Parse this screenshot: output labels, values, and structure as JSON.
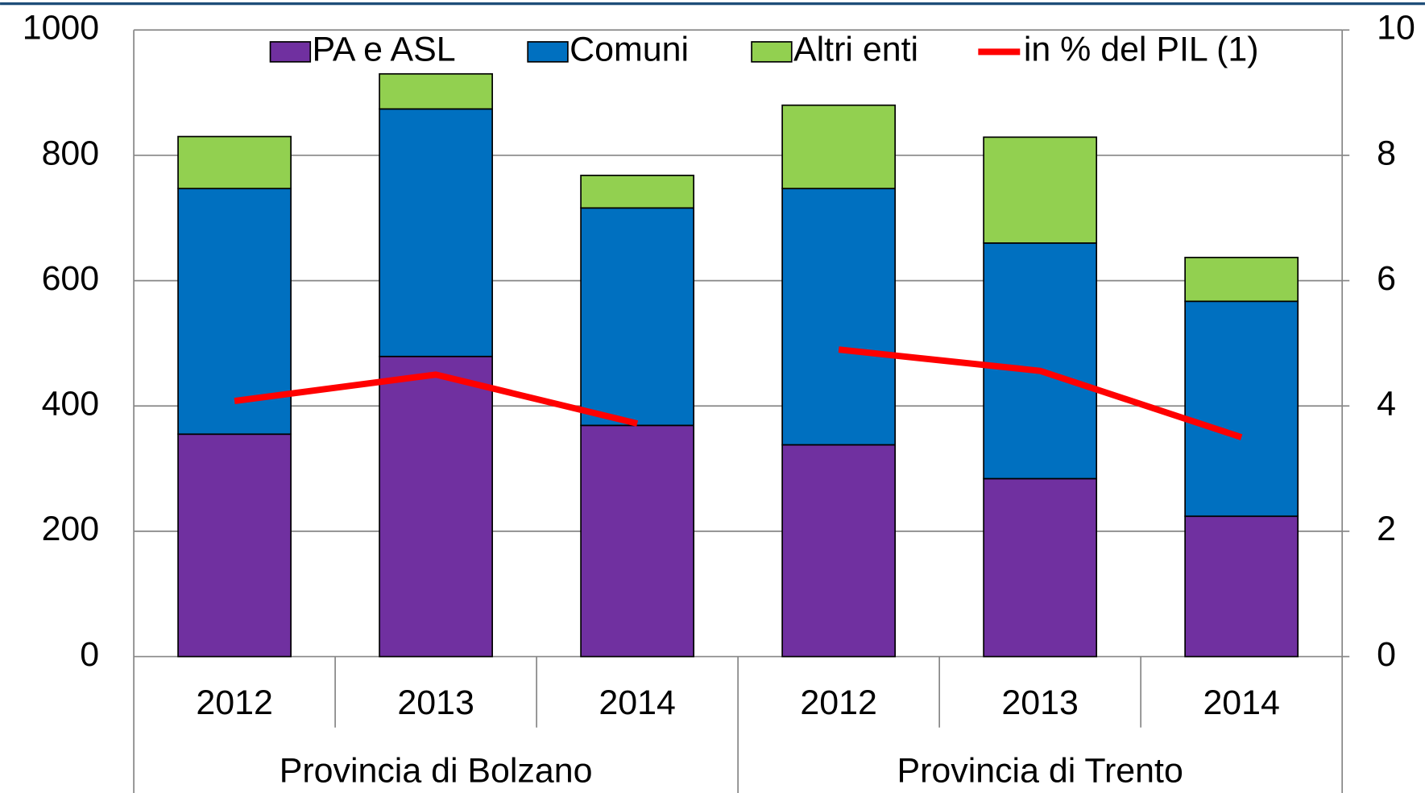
{
  "chart_data": {
    "type": "bar",
    "stacked": true,
    "categories": [
      "2012",
      "2013",
      "2014",
      "2012",
      "2013",
      "2014"
    ],
    "category_groups": [
      "Provincia di Bolzano",
      "Provincia di Trento"
    ],
    "series": [
      {
        "name": "PA e ASL",
        "color": "#7030a0",
        "values": [
          355,
          479,
          369,
          338,
          284,
          224
        ]
      },
      {
        "name": "Comuni",
        "color": "#0070c0",
        "values": [
          392,
          395,
          347,
          409,
          376,
          343
        ]
      },
      {
        "name": "Altri enti",
        "color": "#92d050",
        "values": [
          83,
          56,
          52,
          133,
          169,
          70
        ]
      },
      {
        "name": "in % del PIL (1)",
        "color": "#ff0000",
        "type": "line",
        "axis": "y2",
        "values": [
          4.08,
          4.5,
          3.72,
          4.9,
          4.56,
          3.5
        ]
      }
    ],
    "ylim": [
      0,
      1000
    ],
    "yticks": [
      0,
      200,
      400,
      600,
      800,
      1000
    ],
    "y2lim": [
      0,
      10
    ],
    "y2ticks": [
      0,
      2,
      4,
      6,
      8,
      10
    ],
    "grid": true,
    "legend": "top"
  }
}
